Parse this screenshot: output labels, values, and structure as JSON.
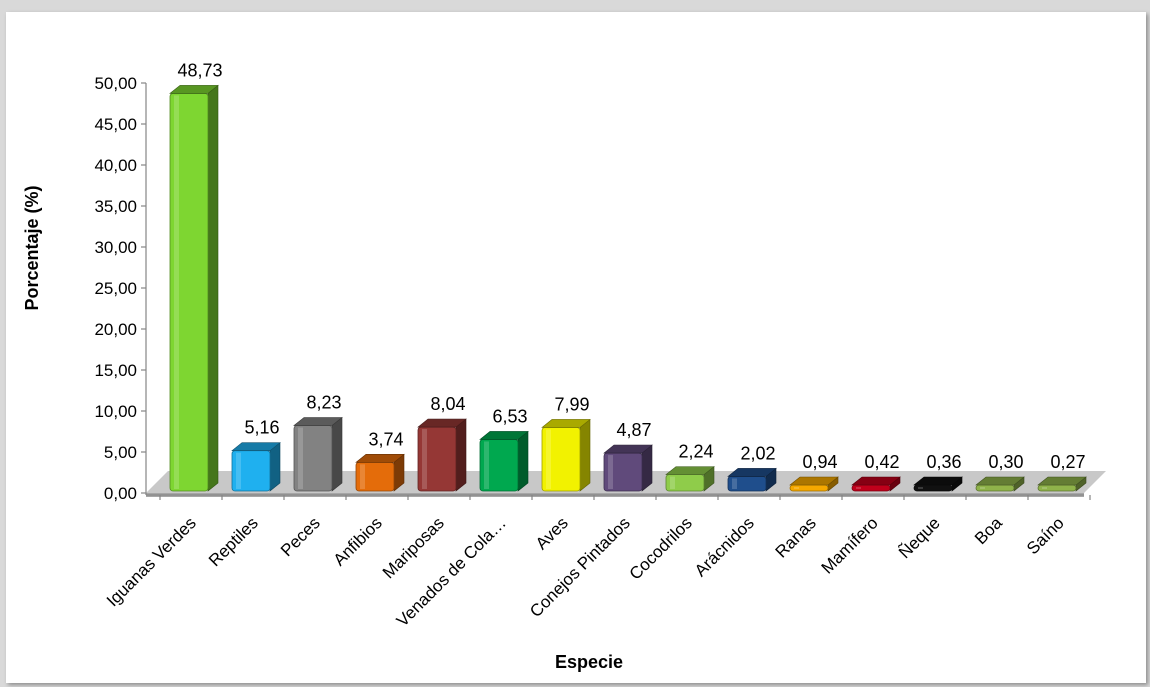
{
  "chart_data": {
    "type": "bar",
    "style": "3d",
    "categories": [
      "Iguanas Verdes",
      "Reptiles",
      "Peces",
      "Anfibios",
      "Mariposas",
      "Venados de Cola…",
      "Aves",
      "Conejos Pintados",
      "Cocodrilos",
      "Arácnidos",
      "Ranas",
      "Mamífero",
      "Ñeque",
      "Boa",
      "Saíno"
    ],
    "values": [
      48.73,
      5.16,
      8.23,
      3.74,
      8.04,
      6.53,
      7.99,
      4.87,
      2.24,
      2.02,
      0.94,
      0.42,
      0.36,
      0.3,
      0.27
    ],
    "data_labels": [
      "48,73",
      "5,16",
      "8,23",
      "3,74",
      "8,04",
      "6,53",
      "7,99",
      "4,87",
      "2,24",
      "2,02",
      "0,94",
      "0,42",
      "0,36",
      "0,30",
      "0,27"
    ],
    "bar_colors": [
      "#7ed631",
      "#1fb0ef",
      "#828282",
      "#e46c0a",
      "#953735",
      "#00a84f",
      "#f2f200",
      "#604a7b",
      "#8fcc4a",
      "#1f4e8c",
      "#f5a800",
      "#c0001b",
      "#111111",
      "#8fb34a",
      "#8fb34a"
    ],
    "xlabel": "Especie",
    "ylabel": "Porcentaje (%)",
    "yticks": [
      "0,00",
      "5,00",
      "10,00",
      "15,00",
      "20,00",
      "25,00",
      "30,00",
      "35,00",
      "40,00",
      "45,00",
      "50,00"
    ],
    "ylim": [
      0,
      50
    ],
    "grid": false,
    "legend": "none"
  }
}
